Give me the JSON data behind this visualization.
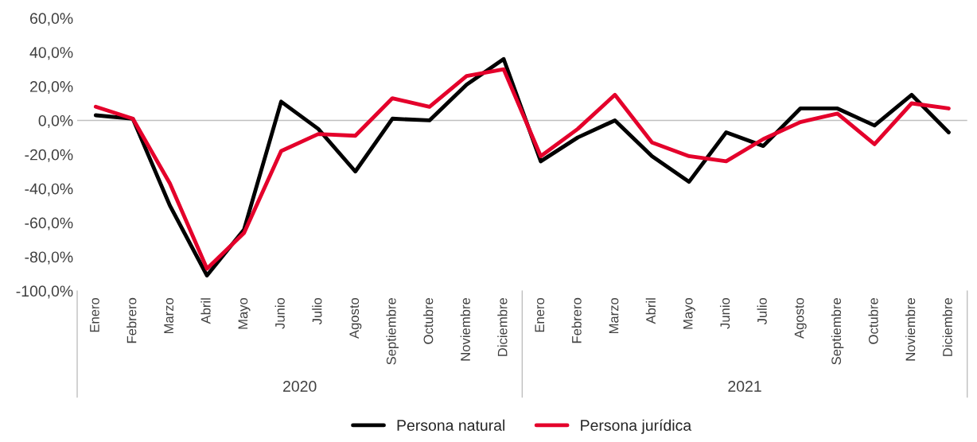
{
  "chart_data": {
    "type": "line",
    "categories": [
      "Enero",
      "Febrero",
      "Marzo",
      "Abril",
      "Mayo",
      "Junio",
      "Julio",
      "Agosto",
      "Septiembre",
      "Octubre",
      "Noviembre",
      "Diciembre",
      "Enero",
      "Febrero",
      "Marzo",
      "Abril",
      "Mayo",
      "Junio",
      "Julio",
      "Agosto",
      "Septiembre",
      "Octubre",
      "Noviembre",
      "Diciembre"
    ],
    "series": [
      {
        "name": "Persona natural",
        "color": "#000000",
        "values": [
          3,
          1,
          -50,
          -91,
          -64,
          11,
          -5,
          -30,
          1,
          0,
          21,
          36,
          -24,
          -10,
          0,
          -21,
          -36,
          -7,
          -15,
          7,
          7,
          -3,
          15,
          -7
        ]
      },
      {
        "name": "Persona jurídica",
        "color": "#e4002b",
        "values": [
          8,
          1,
          -37,
          -87,
          -66,
          -18,
          -8,
          -9,
          13,
          8,
          26,
          30,
          -21,
          -5,
          15,
          -13,
          -21,
          -24,
          -11,
          -1,
          4,
          -14,
          10,
          7
        ]
      }
    ],
    "ylim": [
      -100,
      60
    ],
    "yticks": [
      {
        "value": -100,
        "label": "-100,0%"
      },
      {
        "value": -80,
        "label": "-80,0%"
      },
      {
        "value": -60,
        "label": "-60,0%"
      },
      {
        "value": -40,
        "label": "-40,0%"
      },
      {
        "value": -20,
        "label": "-20,0%"
      },
      {
        "value": 0,
        "label": "0,0%"
      },
      {
        "value": 20,
        "label": "20,0%"
      },
      {
        "value": 40,
        "label": "40,0%"
      },
      {
        "value": 60,
        "label": "60,0%"
      }
    ],
    "ref_lines": [
      {
        "axis": "y",
        "value": 0,
        "color": "#bfbfbf"
      }
    ],
    "annotations": [
      "2020",
      "2021"
    ],
    "grid": false,
    "legend": "bottom",
    "marker": "none",
    "line_style": "solid"
  }
}
